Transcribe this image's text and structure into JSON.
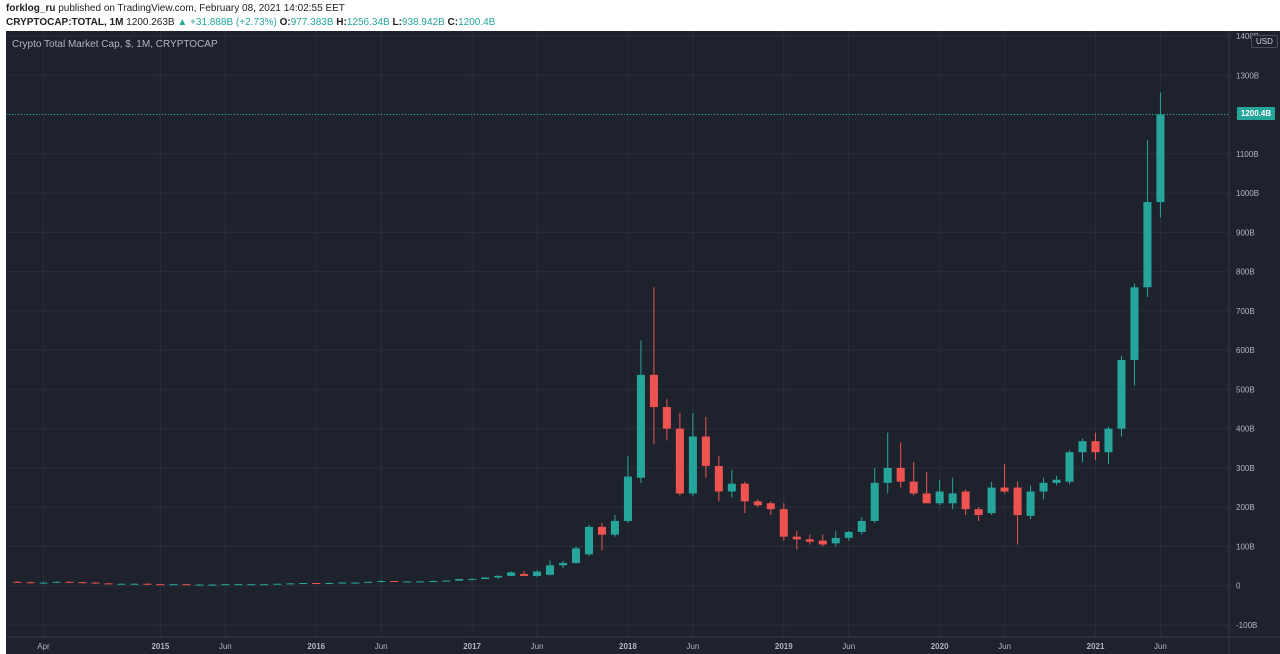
{
  "header": {
    "author": "forklog_ru",
    "published": "published on TradingView.com, February 08, 2021 14:02:55 EET",
    "symbol": "CRYPTOCAP:TOTAL, 1M",
    "last": "1200.263B",
    "change_arrow": "▲",
    "change": "+31.888B (+2.73%)",
    "o_label": "O:",
    "o_value": "977.383B",
    "h_label": "H:",
    "h_value": "1256.34B",
    "l_label": "L:",
    "l_value": "938.942B",
    "c_label": "C:",
    "c_value": "1200.4B"
  },
  "chart_legend": "Crypto Total Market Cap, $, 1M, CRYPTOCAP",
  "currency": "USD",
  "last_price_tag": "1200.4B",
  "colors": {
    "background": "#1e222d",
    "grid": "#2a2e39",
    "up": "#26a69a",
    "down": "#ef5350",
    "axis_text": "#b2b5be"
  },
  "chart_data": {
    "type": "candlestick",
    "title": "Crypto Total Market Cap, $, 1M, CRYPTOCAP",
    "interval": "1M",
    "ylim": [
      -100,
      1400
    ],
    "y_unit": "B",
    "grid": true,
    "y_ticks": [
      "-100B",
      "0",
      "100B",
      "200B",
      "300B",
      "400B",
      "500B",
      "600B",
      "700B",
      "800B",
      "900B",
      "1000B",
      "1100B",
      "1200B",
      "1300B",
      "1400B"
    ],
    "x_ticks": [
      {
        "label": "Apr",
        "date": "2014-04"
      },
      {
        "label": "2015",
        "date": "2015-01"
      },
      {
        "label": "Jun",
        "date": "2015-06"
      },
      {
        "label": "2016",
        "date": "2016-01"
      },
      {
        "label": "Jun",
        "date": "2016-06"
      },
      {
        "label": "2017",
        "date": "2017-01"
      },
      {
        "label": "Jun",
        "date": "2017-06"
      },
      {
        "label": "2018",
        "date": "2018-01"
      },
      {
        "label": "Jun",
        "date": "2018-06"
      },
      {
        "label": "2019",
        "date": "2019-01"
      },
      {
        "label": "Jun",
        "date": "2019-06"
      },
      {
        "label": "2020",
        "date": "2020-01"
      },
      {
        "label": "Jun",
        "date": "2020-06"
      },
      {
        "label": "2021",
        "date": "2021-01"
      },
      {
        "label": "Jun",
        "date": "2021-06"
      }
    ],
    "candles": [
      {
        "date": "2014-02",
        "o": 10,
        "h": 12,
        "l": 8,
        "c": 9
      },
      {
        "date": "2014-03",
        "o": 9,
        "h": 10,
        "l": 6,
        "c": 7
      },
      {
        "date": "2014-04",
        "o": 7,
        "h": 9,
        "l": 5,
        "c": 8
      },
      {
        "date": "2014-05",
        "o": 8,
        "h": 11,
        "l": 7,
        "c": 10
      },
      {
        "date": "2014-06",
        "o": 10,
        "h": 11,
        "l": 8,
        "c": 9
      },
      {
        "date": "2014-07",
        "o": 9,
        "h": 10,
        "l": 7,
        "c": 8
      },
      {
        "date": "2014-08",
        "o": 8,
        "h": 9,
        "l": 6,
        "c": 6
      },
      {
        "date": "2014-09",
        "o": 6,
        "h": 7,
        "l": 5,
        "c": 5
      },
      {
        "date": "2014-10",
        "o": 5,
        "h": 6,
        "l": 4,
        "c": 5
      },
      {
        "date": "2014-11",
        "o": 5,
        "h": 6,
        "l": 4,
        "c": 5
      },
      {
        "date": "2014-12",
        "o": 5,
        "h": 6,
        "l": 4,
        "c": 4
      },
      {
        "date": "2015-01",
        "o": 4,
        "h": 4,
        "l": 2,
        "c": 3
      },
      {
        "date": "2015-02",
        "o": 3,
        "h": 4,
        "l": 3,
        "c": 4
      },
      {
        "date": "2015-03",
        "o": 4,
        "h": 4,
        "l": 3,
        "c": 3
      },
      {
        "date": "2015-04",
        "o": 3,
        "h": 4,
        "l": 3,
        "c": 3
      },
      {
        "date": "2015-05",
        "o": 3,
        "h": 4,
        "l": 3,
        "c": 3
      },
      {
        "date": "2015-06",
        "o": 3,
        "h": 4,
        "l": 3,
        "c": 4
      },
      {
        "date": "2015-07",
        "o": 4,
        "h": 5,
        "l": 4,
        "c": 4
      },
      {
        "date": "2015-08",
        "o": 4,
        "h": 4,
        "l": 3,
        "c": 4
      },
      {
        "date": "2015-09",
        "o": 4,
        "h": 4,
        "l": 3,
        "c": 4
      },
      {
        "date": "2015-10",
        "o": 4,
        "h": 5,
        "l": 4,
        "c": 5
      },
      {
        "date": "2015-11",
        "o": 5,
        "h": 7,
        "l": 4,
        "c": 6
      },
      {
        "date": "2015-12",
        "o": 6,
        "h": 7,
        "l": 5,
        "c": 7
      },
      {
        "date": "2016-01",
        "o": 7,
        "h": 7,
        "l": 6,
        "c": 6
      },
      {
        "date": "2016-02",
        "o": 6,
        "h": 8,
        "l": 6,
        "c": 7
      },
      {
        "date": "2016-03",
        "o": 7,
        "h": 9,
        "l": 7,
        "c": 8
      },
      {
        "date": "2016-04",
        "o": 8,
        "h": 9,
        "l": 7,
        "c": 8
      },
      {
        "date": "2016-05",
        "o": 8,
        "h": 10,
        "l": 8,
        "c": 10
      },
      {
        "date": "2016-06",
        "o": 10,
        "h": 14,
        "l": 9,
        "c": 12
      },
      {
        "date": "2016-07",
        "o": 12,
        "h": 12,
        "l": 10,
        "c": 11
      },
      {
        "date": "2016-08",
        "o": 11,
        "h": 11,
        "l": 10,
        "c": 11
      },
      {
        "date": "2016-09",
        "o": 11,
        "h": 12,
        "l": 11,
        "c": 11
      },
      {
        "date": "2016-10",
        "o": 11,
        "h": 13,
        "l": 11,
        "c": 12
      },
      {
        "date": "2016-11",
        "o": 12,
        "h": 13,
        "l": 12,
        "c": 13
      },
      {
        "date": "2016-12",
        "o": 13,
        "h": 18,
        "l": 13,
        "c": 17
      },
      {
        "date": "2017-01",
        "o": 17,
        "h": 20,
        "l": 14,
        "c": 17
      },
      {
        "date": "2017-02",
        "o": 17,
        "h": 22,
        "l": 17,
        "c": 21
      },
      {
        "date": "2017-03",
        "o": 21,
        "h": 27,
        "l": 18,
        "c": 25
      },
      {
        "date": "2017-04",
        "o": 25,
        "h": 37,
        "l": 24,
        "c": 34
      },
      {
        "date": "2017-05",
        "o": 30,
        "h": 38,
        "l": 28,
        "c": 25
      },
      {
        "date": "2017-06",
        "o": 25,
        "h": 40,
        "l": 22,
        "c": 36
      },
      {
        "date": "2017-07",
        "o": 28,
        "h": 64,
        "l": 26,
        "c": 52
      },
      {
        "date": "2017-08",
        "o": 52,
        "h": 63,
        "l": 45,
        "c": 58
      },
      {
        "date": "2017-09",
        "o": 58,
        "h": 100,
        "l": 56,
        "c": 95
      },
      {
        "date": "2017-10",
        "o": 80,
        "h": 155,
        "l": 76,
        "c": 150
      },
      {
        "date": "2017-11",
        "o": 150,
        "h": 160,
        "l": 90,
        "c": 130
      },
      {
        "date": "2017-12",
        "o": 130,
        "h": 180,
        "l": 125,
        "c": 165
      },
      {
        "date": "2018-01",
        "o": 165,
        "h": 330,
        "l": 160,
        "c": 278
      },
      {
        "date": "2018-02",
        "o": 275,
        "h": 625,
        "l": 262,
        "c": 537
      },
      {
        "date": "2018-03",
        "o": 537,
        "h": 760,
        "l": 360,
        "c": 455
      },
      {
        "date": "2018-04",
        "o": 455,
        "h": 475,
        "l": 370,
        "c": 400
      },
      {
        "date": "2018-05",
        "o": 400,
        "h": 440,
        "l": 230,
        "c": 235
      },
      {
        "date": "2018-06",
        "o": 235,
        "h": 440,
        "l": 228,
        "c": 380
      },
      {
        "date": "2018-07",
        "o": 380,
        "h": 430,
        "l": 275,
        "c": 305
      },
      {
        "date": "2018-08",
        "o": 305,
        "h": 330,
        "l": 215,
        "c": 240
      },
      {
        "date": "2018-09",
        "o": 240,
        "h": 295,
        "l": 225,
        "c": 260
      },
      {
        "date": "2018-10",
        "o": 260,
        "h": 265,
        "l": 185,
        "c": 215
      },
      {
        "date": "2018-11",
        "o": 215,
        "h": 220,
        "l": 200,
        "c": 205
      },
      {
        "date": "2018-12",
        "o": 210,
        "h": 215,
        "l": 180,
        "c": 195
      },
      {
        "date": "2019-01",
        "o": 195,
        "h": 210,
        "l": 115,
        "c": 125
      },
      {
        "date": "2019-02",
        "o": 125,
        "h": 140,
        "l": 92,
        "c": 118
      },
      {
        "date": "2019-03",
        "o": 118,
        "h": 130,
        "l": 105,
        "c": 112
      },
      {
        "date": "2019-04",
        "o": 115,
        "h": 130,
        "l": 100,
        "c": 105
      },
      {
        "date": "2019-05",
        "o": 108,
        "h": 140,
        "l": 100,
        "c": 122
      },
      {
        "date": "2019-06",
        "o": 122,
        "h": 140,
        "l": 115,
        "c": 137
      },
      {
        "date": "2019-07",
        "o": 137,
        "h": 175,
        "l": 130,
        "c": 165
      },
      {
        "date": "2019-08",
        "o": 165,
        "h": 300,
        "l": 160,
        "c": 262
      },
      {
        "date": "2019-09",
        "o": 262,
        "h": 390,
        "l": 235,
        "c": 300
      },
      {
        "date": "2019-10",
        "o": 300,
        "h": 365,
        "l": 250,
        "c": 265
      },
      {
        "date": "2019-11",
        "o": 265,
        "h": 315,
        "l": 230,
        "c": 235
      },
      {
        "date": "2019-12",
        "o": 235,
        "h": 290,
        "l": 210,
        "c": 210
      },
      {
        "date": "2020-01",
        "o": 210,
        "h": 270,
        "l": 205,
        "c": 240
      },
      {
        "date": "2020-02",
        "o": 210,
        "h": 275,
        "l": 195,
        "c": 235
      },
      {
        "date": "2020-03",
        "o": 240,
        "h": 245,
        "l": 180,
        "c": 195
      },
      {
        "date": "2020-04",
        "o": 195,
        "h": 200,
        "l": 165,
        "c": 180
      },
      {
        "date": "2020-05",
        "o": 185,
        "h": 265,
        "l": 180,
        "c": 250
      },
      {
        "date": "2020-06",
        "o": 250,
        "h": 310,
        "l": 235,
        "c": 240
      },
      {
        "date": "2020-07",
        "o": 250,
        "h": 265,
        "l": 105,
        "c": 180
      },
      {
        "date": "2020-08",
        "o": 178,
        "h": 255,
        "l": 170,
        "c": 240
      },
      {
        "date": "2020-09",
        "o": 240,
        "h": 275,
        "l": 220,
        "c": 262
      },
      {
        "date": "2020-10",
        "o": 262,
        "h": 280,
        "l": 255,
        "c": 270
      },
      {
        "date": "2020-11",
        "o": 265,
        "h": 345,
        "l": 258,
        "c": 340
      },
      {
        "date": "2020-12",
        "o": 340,
        "h": 375,
        "l": 315,
        "c": 368
      },
      {
        "date": "2021-01",
        "o": 368,
        "h": 390,
        "l": 320,
        "c": 340
      },
      {
        "date": "2021-02",
        "o": 340,
        "h": 405,
        "l": 310,
        "c": 400
      },
      {
        "date": "2021-03",
        "o": 400,
        "h": 585,
        "l": 380,
        "c": 575
      },
      {
        "date": "2021-04",
        "o": 575,
        "h": 770,
        "l": 510,
        "c": 760
      },
      {
        "date": "2021-05",
        "o": 760,
        "h": 1135,
        "l": 735,
        "c": 977
      },
      {
        "date": "2021-06",
        "o": 977,
        "h": 1256,
        "l": 938,
        "c": 1200
      }
    ]
  }
}
